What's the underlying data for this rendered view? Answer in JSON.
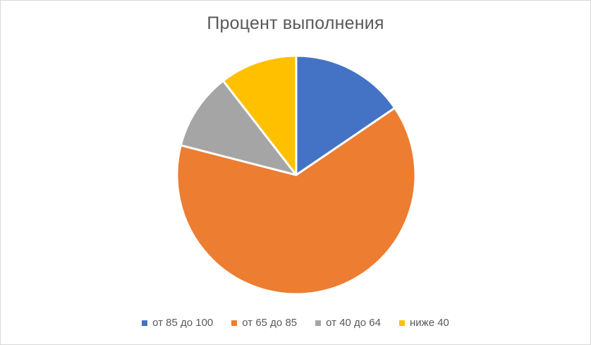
{
  "chart_data": {
    "type": "pie",
    "title": "Процент выполнения",
    "categories": [
      "от 85 до 100",
      "от 65 до 85",
      "от 40 до 64",
      "ниже 40"
    ],
    "values": [
      15.5,
      63.5,
      10.5,
      10.5
    ],
    "colors": [
      "#4472C4",
      "#ED7D31",
      "#A5A5A5",
      "#FFC000"
    ],
    "legend_position": "bottom",
    "start_angle": "top, clockwise"
  }
}
